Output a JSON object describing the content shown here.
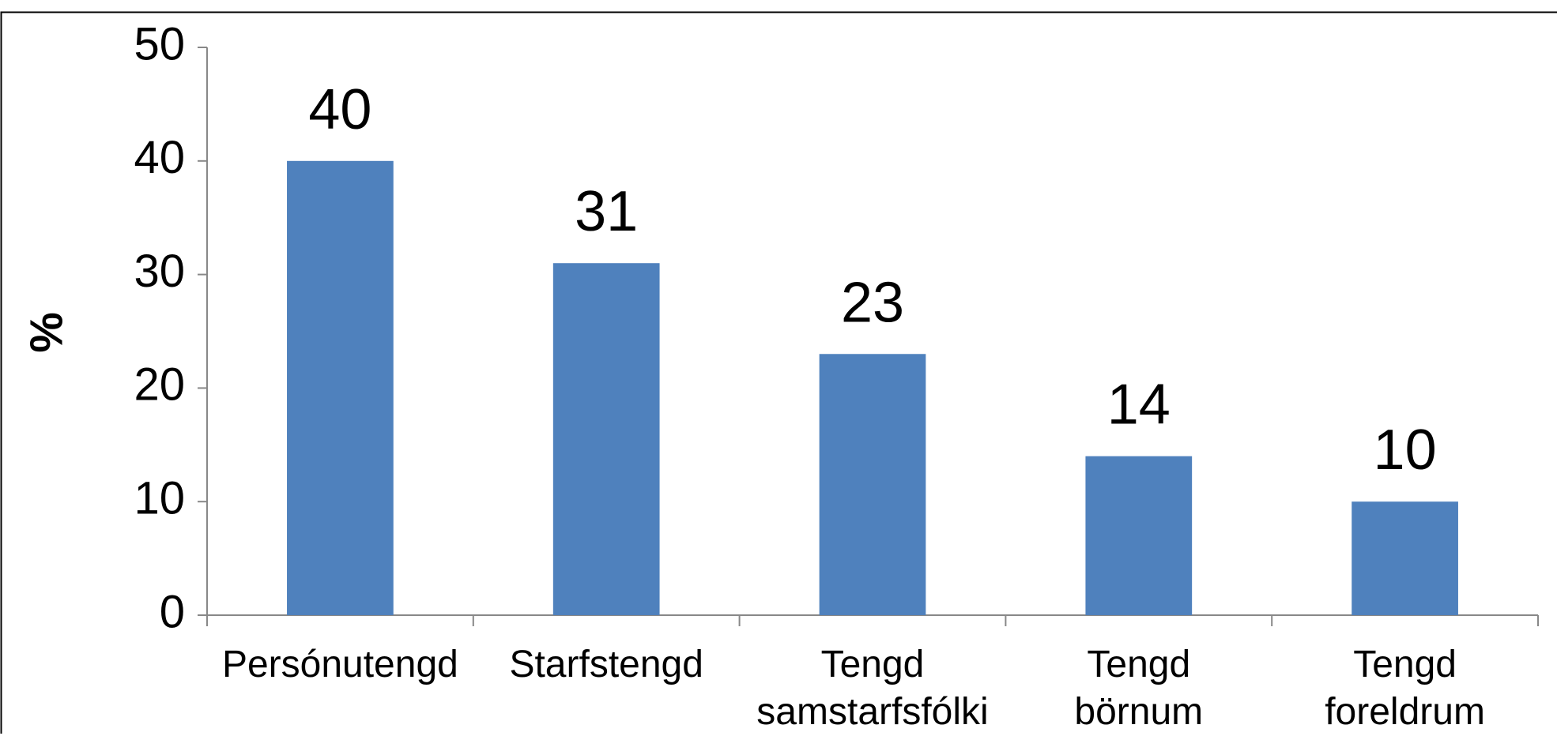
{
  "chart_data": {
    "type": "bar",
    "y_label": "%",
    "categories": [
      "Persónutengd",
      "Starfstengd",
      "Tengd\nsamstarfsfólki",
      "Tengd\nbörnum",
      "Tengd\nforeldrum"
    ],
    "values": [
      40,
      31,
      23,
      14,
      10
    ],
    "color": "#4f81bd",
    "ylim": [
      0,
      50
    ],
    "yticks": [
      0,
      10,
      20,
      30,
      40,
      50
    ],
    "grid": false
  }
}
